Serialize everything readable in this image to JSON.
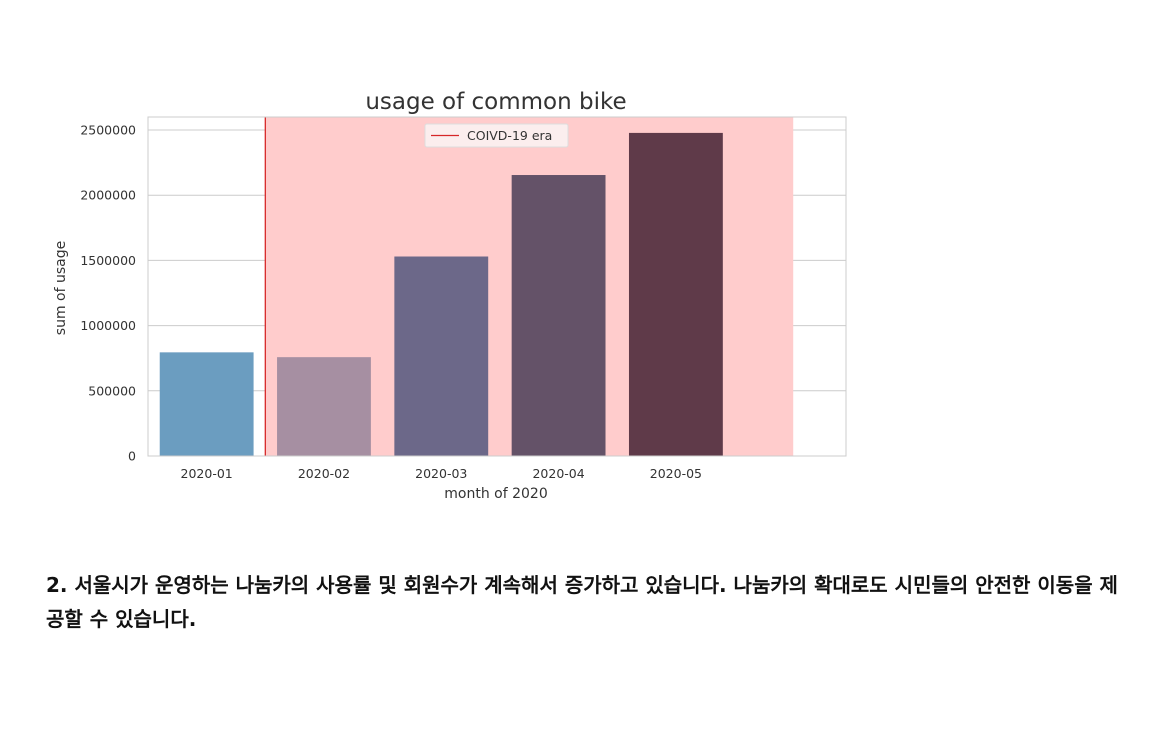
{
  "chart_data": {
    "type": "bar",
    "title": "usage of common bike",
    "xlabel": "month of 2020",
    "ylabel": "sum of usage",
    "categories": [
      "2020-01",
      "2020-02",
      "2020-03",
      "2020-04",
      "2020-05"
    ],
    "values": [
      795000,
      758000,
      1530000,
      2155000,
      2478000
    ],
    "bar_colors": [
      "#6b9dc0",
      "#a68fa2",
      "#6c6889",
      "#645268",
      "#5f3a49"
    ],
    "ylim": [
      0,
      2600000
    ],
    "yticks": [
      0,
      500000,
      1000000,
      1500000,
      2000000,
      2500000
    ],
    "ytick_labels": [
      "0",
      "500000",
      "1000000",
      "1500000",
      "2000000",
      "2500000"
    ],
    "grid": "horizontal",
    "legend": {
      "position": "top-center",
      "entries": [
        "COIVD-19 era"
      ]
    },
    "annotation": {
      "label": "COIVD-19 era",
      "line_color": "#d62728",
      "shade_color": "#ffcccc",
      "start_index": 0.5
    }
  },
  "caption": {
    "number": "2",
    "text": ". 서울시가 운영하는 나눔카의 사용률 및 회원수가 계속해서 증가하고 있습니다. 나눔카의 확대로도 시민들의 안전한 이동을 제공할 수 있습니다."
  }
}
